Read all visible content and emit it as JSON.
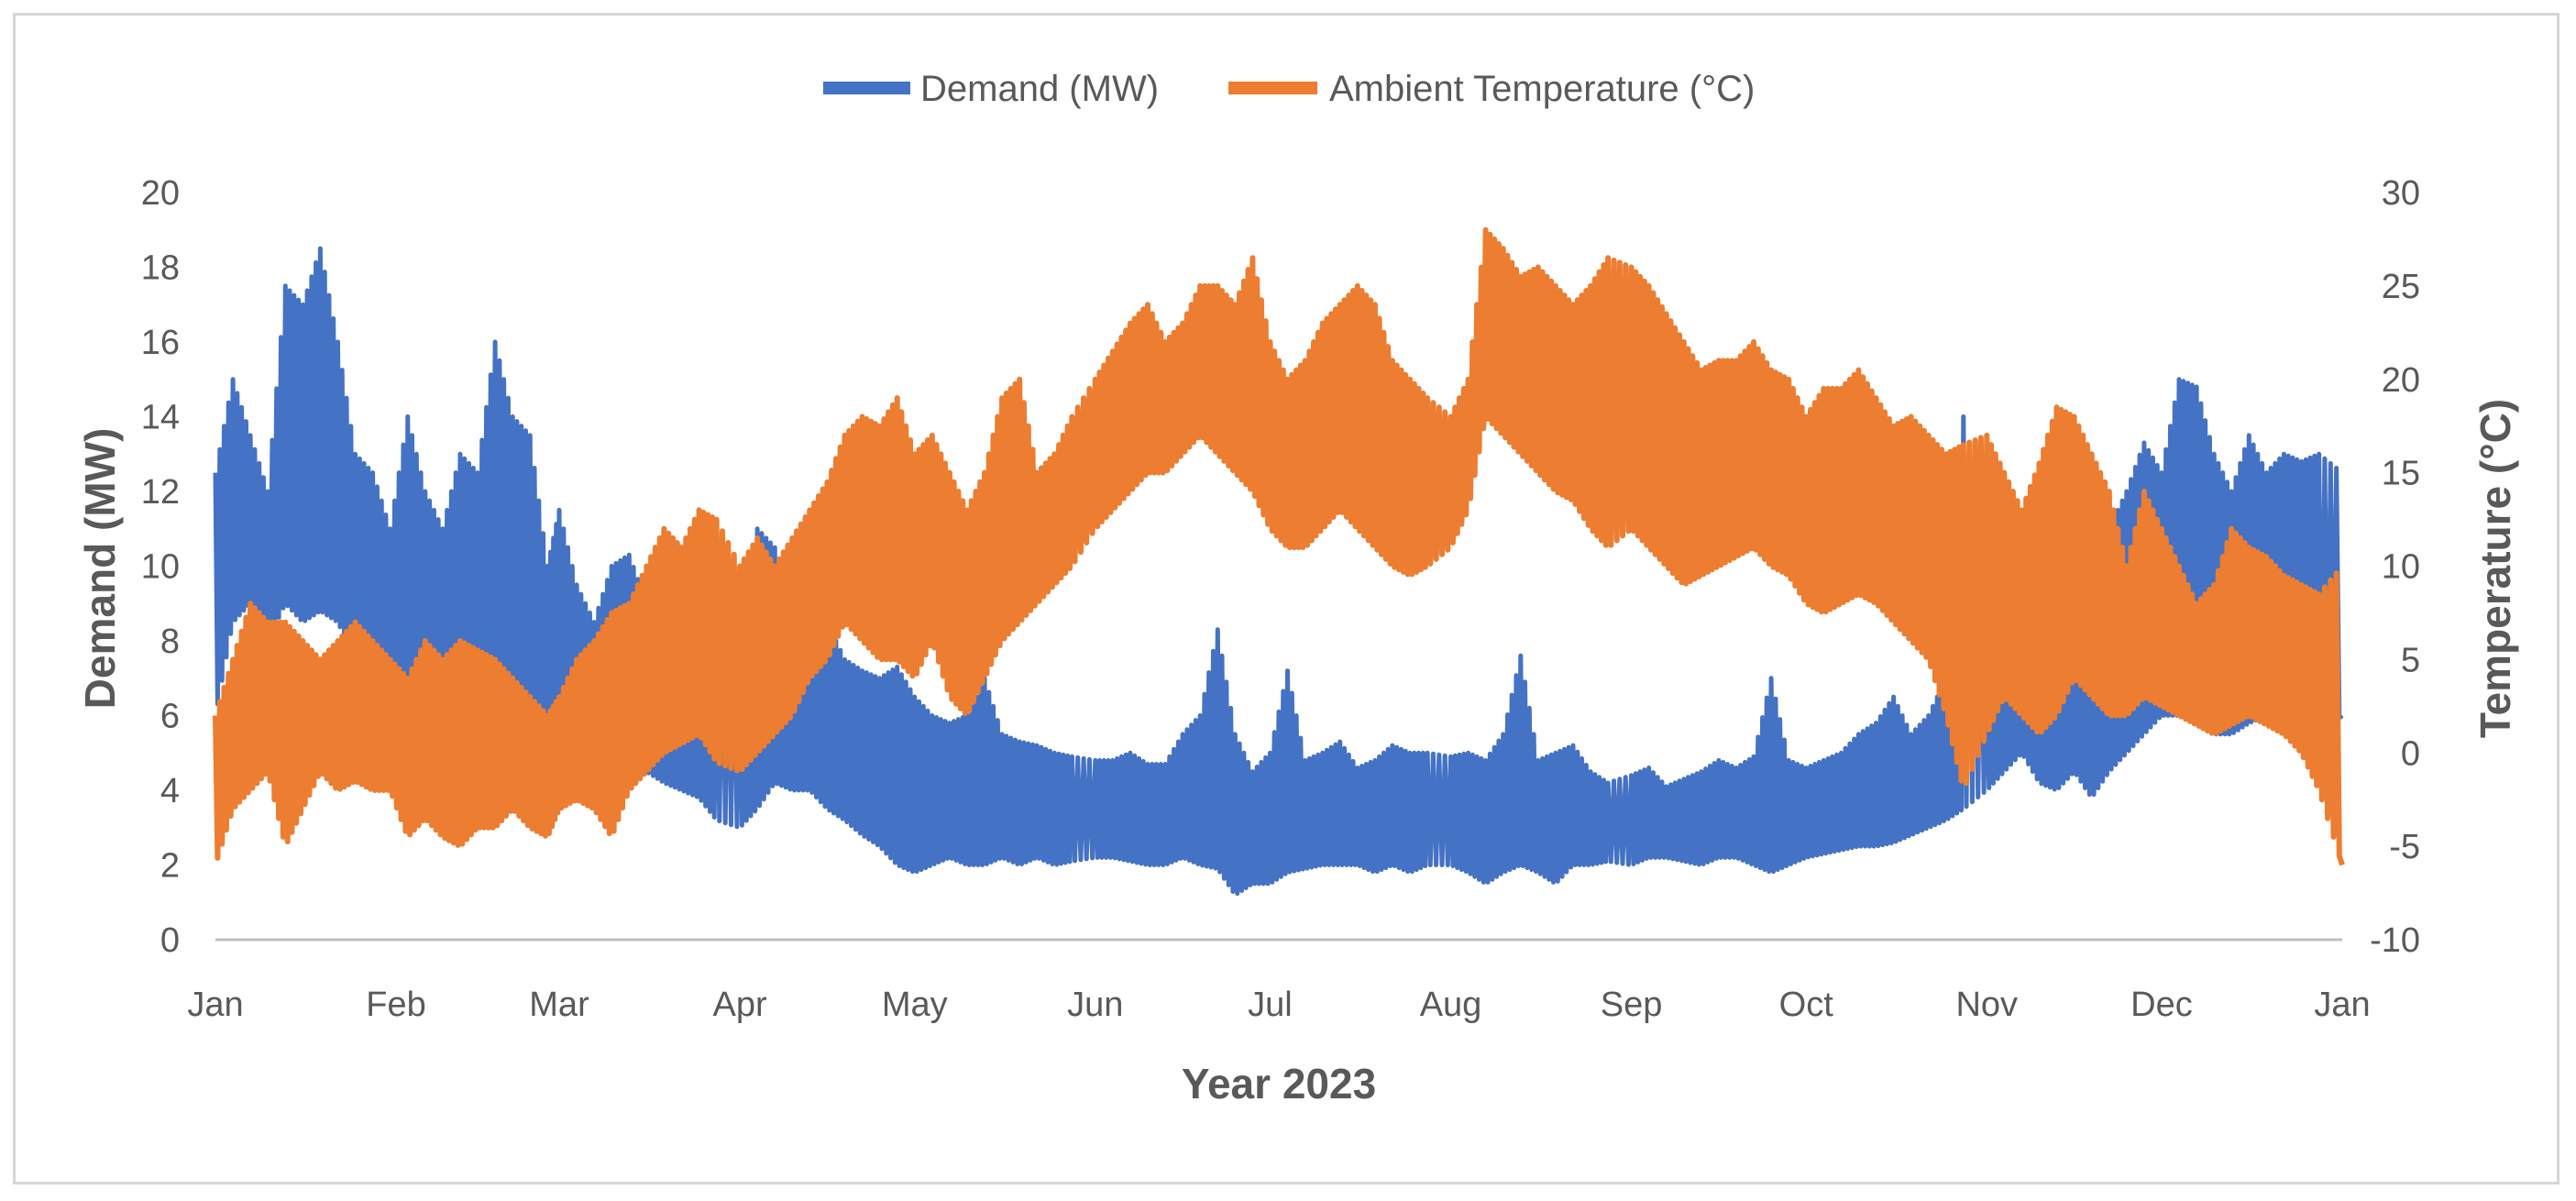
{
  "chart_data": {
    "type": "line",
    "title": "",
    "xlabel": "Year 2023",
    "ylabel_left": "Demand (MW)",
    "ylabel_right": "Temperature (°C)",
    "ylim_left": [
      0,
      20
    ],
    "ylim_right": [
      -10,
      30
    ],
    "yticks_left": [
      "0",
      "2",
      "4",
      "6",
      "8",
      "10",
      "12",
      "14",
      "16",
      "18",
      "20"
    ],
    "yticks_right": [
      "-10",
      "-5",
      "0",
      "5",
      "10",
      "15",
      "20",
      "25",
      "30"
    ],
    "x_tick_labels": [
      "Jan",
      "Feb",
      "Mar",
      "Apr",
      "May",
      "Jun",
      "Jul",
      "Aug",
      "Sep",
      "Oct",
      "Nov",
      "Dec",
      "Jan"
    ],
    "x_day_range": [
      0,
      365
    ],
    "grid": false,
    "legend_position": "top",
    "series": [
      {
        "name": "Demand (MW)",
        "axis": "left",
        "color": "#4472c4",
        "x": [
          0,
          3,
          6,
          9,
          12,
          15,
          18,
          21,
          24,
          27,
          30,
          33,
          36,
          39,
          42,
          45,
          48,
          51,
          54,
          57,
          59,
          62,
          65,
          68,
          71,
          74,
          77,
          80,
          83,
          86,
          90,
          93,
          96,
          99,
          102,
          105,
          108,
          111,
          114,
          117,
          120,
          123,
          126,
          129,
          132,
          135,
          138,
          141,
          144,
          147,
          151,
          154,
          157,
          160,
          163,
          166,
          169,
          172,
          175,
          178,
          181,
          184,
          187,
          190,
          193,
          196,
          199,
          202,
          205,
          208,
          212,
          215,
          218,
          221,
          224,
          227,
          230,
          233,
          236,
          239,
          243,
          246,
          249,
          252,
          255,
          258,
          261,
          264,
          267,
          270,
          273,
          276,
          279,
          282,
          285,
          288,
          291,
          294,
          297,
          300,
          304,
          307,
          310,
          313,
          316,
          319,
          322,
          325,
          328,
          331,
          334,
          337,
          340,
          343,
          346,
          349,
          352,
          355,
          358,
          361,
          365
        ],
        "hi": [
          12.5,
          15.0,
          13.5,
          12.0,
          17.5,
          17.0,
          18.5,
          16.0,
          13.0,
          12.5,
          11.0,
          14.0,
          12.0,
          11.0,
          13.0,
          12.5,
          16.0,
          14.0,
          13.5,
          10.0,
          11.5,
          9.5,
          8.5,
          10.0,
          10.3,
          9.0,
          10.2,
          9.5,
          9.0,
          8.8,
          9.0,
          11.0,
          10.5,
          9.0,
          8.5,
          8.5,
          7.5,
          7.2,
          7.0,
          7.3,
          6.5,
          6.0,
          5.8,
          6.0,
          7.0,
          5.5,
          5.3,
          5.2,
          5.0,
          4.9,
          4.8,
          4.8,
          5.0,
          4.7,
          4.7,
          5.5,
          6.0,
          8.3,
          5.5,
          4.5,
          5.0,
          7.2,
          4.8,
          5.0,
          5.3,
          4.6,
          4.8,
          5.2,
          5.0,
          5.0,
          4.9,
          5.0,
          4.8,
          5.5,
          7.6,
          4.8,
          5.0,
          5.2,
          4.5,
          4.2,
          4.4,
          4.6,
          4.1,
          4.3,
          4.5,
          4.8,
          4.6,
          4.9,
          7.0,
          4.8,
          4.6,
          4.8,
          5.0,
          5.5,
          5.8,
          6.5,
          5.5,
          6.0,
          7.0,
          14.0,
          8.5,
          11.5,
          10.5,
          10.0,
          9.5,
          10.5,
          8.5,
          11.0,
          12.0,
          13.3,
          12.5,
          15.0,
          14.8,
          13.0,
          12.0,
          13.5,
          12.5,
          13.0,
          12.8,
          13.0,
          12.5
        ],
        "lo": [
          6.0,
          8.5,
          9.0,
          8.0,
          9.0,
          8.5,
          8.8,
          8.5,
          7.5,
          6.5,
          5.5,
          4.5,
          5.0,
          6.0,
          6.0,
          6.5,
          7.0,
          6.5,
          6.0,
          5.5,
          5.5,
          5.2,
          4.8,
          4.5,
          5.0,
          4.5,
          4.2,
          4.0,
          3.8,
          3.2,
          3.0,
          3.5,
          4.2,
          4.0,
          4.0,
          3.5,
          3.2,
          2.8,
          2.5,
          2.0,
          1.8,
          2.0,
          2.2,
          2.0,
          2.0,
          2.2,
          2.0,
          2.2,
          2.0,
          2.1,
          2.2,
          2.2,
          2.1,
          2.0,
          2.0,
          2.2,
          2.0,
          1.9,
          1.2,
          1.5,
          1.5,
          1.8,
          1.9,
          2.0,
          2.0,
          2.0,
          1.8,
          2.0,
          1.8,
          2.0,
          2.0,
          1.8,
          1.5,
          1.8,
          2.0,
          1.8,
          1.5,
          2.0,
          2.0,
          2.1,
          2.0,
          2.2,
          2.2,
          2.1,
          2.0,
          2.2,
          2.2,
          2.0,
          1.8,
          2.0,
          2.2,
          2.3,
          2.4,
          2.5,
          2.5,
          2.6,
          2.8,
          3.0,
          3.2,
          3.5,
          4.0,
          4.5,
          5.0,
          4.2,
          4.0,
          4.5,
          3.8,
          4.5,
          5.0,
          5.5,
          6.0,
          6.0,
          6.0,
          5.5,
          5.5,
          5.8,
          6.0,
          5.5,
          5.0,
          5.5,
          6.0
        ]
      },
      {
        "name": "Ambient Temperature (°C)",
        "axis": "right",
        "color": "#ed7d31",
        "x": [
          0,
          3,
          6,
          9,
          12,
          15,
          18,
          21,
          24,
          27,
          30,
          33,
          36,
          39,
          42,
          45,
          48,
          51,
          54,
          57,
          59,
          62,
          65,
          68,
          71,
          74,
          77,
          80,
          83,
          86,
          90,
          93,
          96,
          99,
          102,
          105,
          108,
          111,
          114,
          117,
          120,
          123,
          126,
          129,
          132,
          135,
          138,
          141,
          144,
          147,
          151,
          154,
          157,
          160,
          163,
          166,
          169,
          172,
          175,
          178,
          181,
          184,
          187,
          190,
          193,
          196,
          199,
          202,
          205,
          208,
          212,
          215,
          218,
          221,
          224,
          227,
          230,
          233,
          236,
          239,
          243,
          246,
          249,
          252,
          255,
          258,
          261,
          264,
          267,
          270,
          273,
          276,
          279,
          282,
          285,
          288,
          291,
          294,
          297,
          300,
          304,
          307,
          310,
          313,
          316,
          319,
          322,
          325,
          328,
          331,
          334,
          337,
          340,
          343,
          346,
          349,
          352,
          355,
          358,
          361,
          365
        ],
        "hi": [
          2.0,
          5.0,
          8.0,
          7.0,
          7.0,
          6.0,
          5.0,
          6.0,
          7.0,
          6.0,
          5.0,
          4.0,
          6.0,
          5.0,
          6.0,
          5.5,
          5.0,
          4.0,
          3.0,
          2.0,
          3.0,
          5.0,
          6.0,
          7.5,
          8.0,
          10.0,
          12.0,
          11.0,
          13.0,
          12.5,
          10.0,
          11.5,
          10.0,
          11.5,
          13.0,
          14.5,
          17.0,
          18.0,
          17.5,
          19.0,
          16.0,
          17.0,
          15.0,
          13.0,
          15.0,
          19.0,
          20.0,
          15.0,
          16.0,
          18.0,
          20.0,
          21.5,
          23.0,
          24.0,
          22.0,
          23.0,
          25.0,
          25.0,
          24.0,
          26.5,
          22.0,
          20.0,
          21.0,
          23.0,
          24.0,
          25.0,
          24.0,
          21.0,
          20.0,
          19.0,
          18.0,
          20.0,
          28.0,
          27.0,
          25.5,
          26.0,
          25.0,
          24.0,
          25.0,
          26.5,
          26.0,
          25.0,
          23.5,
          22.0,
          20.5,
          21.0,
          21.0,
          22.0,
          20.5,
          20.0,
          18.0,
          19.5,
          19.5,
          20.5,
          19.0,
          17.5,
          18.0,
          17.0,
          16.0,
          16.5,
          17.0,
          15.0,
          13.0,
          15.5,
          18.5,
          18.0,
          16.0,
          14.0,
          10.0,
          14.0,
          12.0,
          10.0,
          8.0,
          9.0,
          12.0,
          11.0,
          10.5,
          9.5,
          9.0,
          8.5,
          10.0
        ],
        "lo": [
          -6.0,
          -3.0,
          -2.0,
          -1.0,
          -5.0,
          -3.0,
          -1.0,
          -2.0,
          -1.5,
          -2.0,
          -2.0,
          -4.5,
          -3.5,
          -4.5,
          -5.0,
          -4.0,
          -4.0,
          -3.0,
          -4.0,
          -4.5,
          -3.0,
          -2.5,
          -3.0,
          -4.5,
          -2.0,
          -1.0,
          0.0,
          0.5,
          1.0,
          -0.5,
          -1.0,
          0.0,
          1.0,
          2.0,
          4.0,
          5.0,
          7.0,
          6.0,
          5.0,
          5.0,
          4.0,
          6.0,
          3.0,
          2.0,
          4.0,
          6.0,
          7.0,
          8.0,
          9.0,
          10.0,
          12.0,
          13.0,
          14.0,
          15.0,
          15.0,
          16.0,
          17.0,
          16.0,
          15.0,
          14.0,
          12.0,
          11.0,
          11.0,
          12.0,
          13.0,
          12.0,
          11.0,
          10.0,
          9.5,
          10.0,
          11.0,
          13.0,
          18.0,
          17.0,
          16.0,
          15.0,
          14.0,
          13.5,
          12.0,
          11.0,
          12.0,
          11.0,
          10.0,
          9.0,
          9.5,
          10.0,
          10.5,
          11.0,
          10.0,
          9.5,
          8.0,
          7.5,
          8.0,
          8.5,
          8.0,
          7.0,
          6.0,
          5.0,
          2.0,
          -2.0,
          1.0,
          3.0,
          2.0,
          1.0,
          2.0,
          4.0,
          3.0,
          2.0,
          2.0,
          3.0,
          2.5,
          2.0,
          1.5,
          1.0,
          1.5,
          2.0,
          1.5,
          1.0,
          0.0,
          -2.0,
          -6.0
        ]
      }
    ]
  }
}
